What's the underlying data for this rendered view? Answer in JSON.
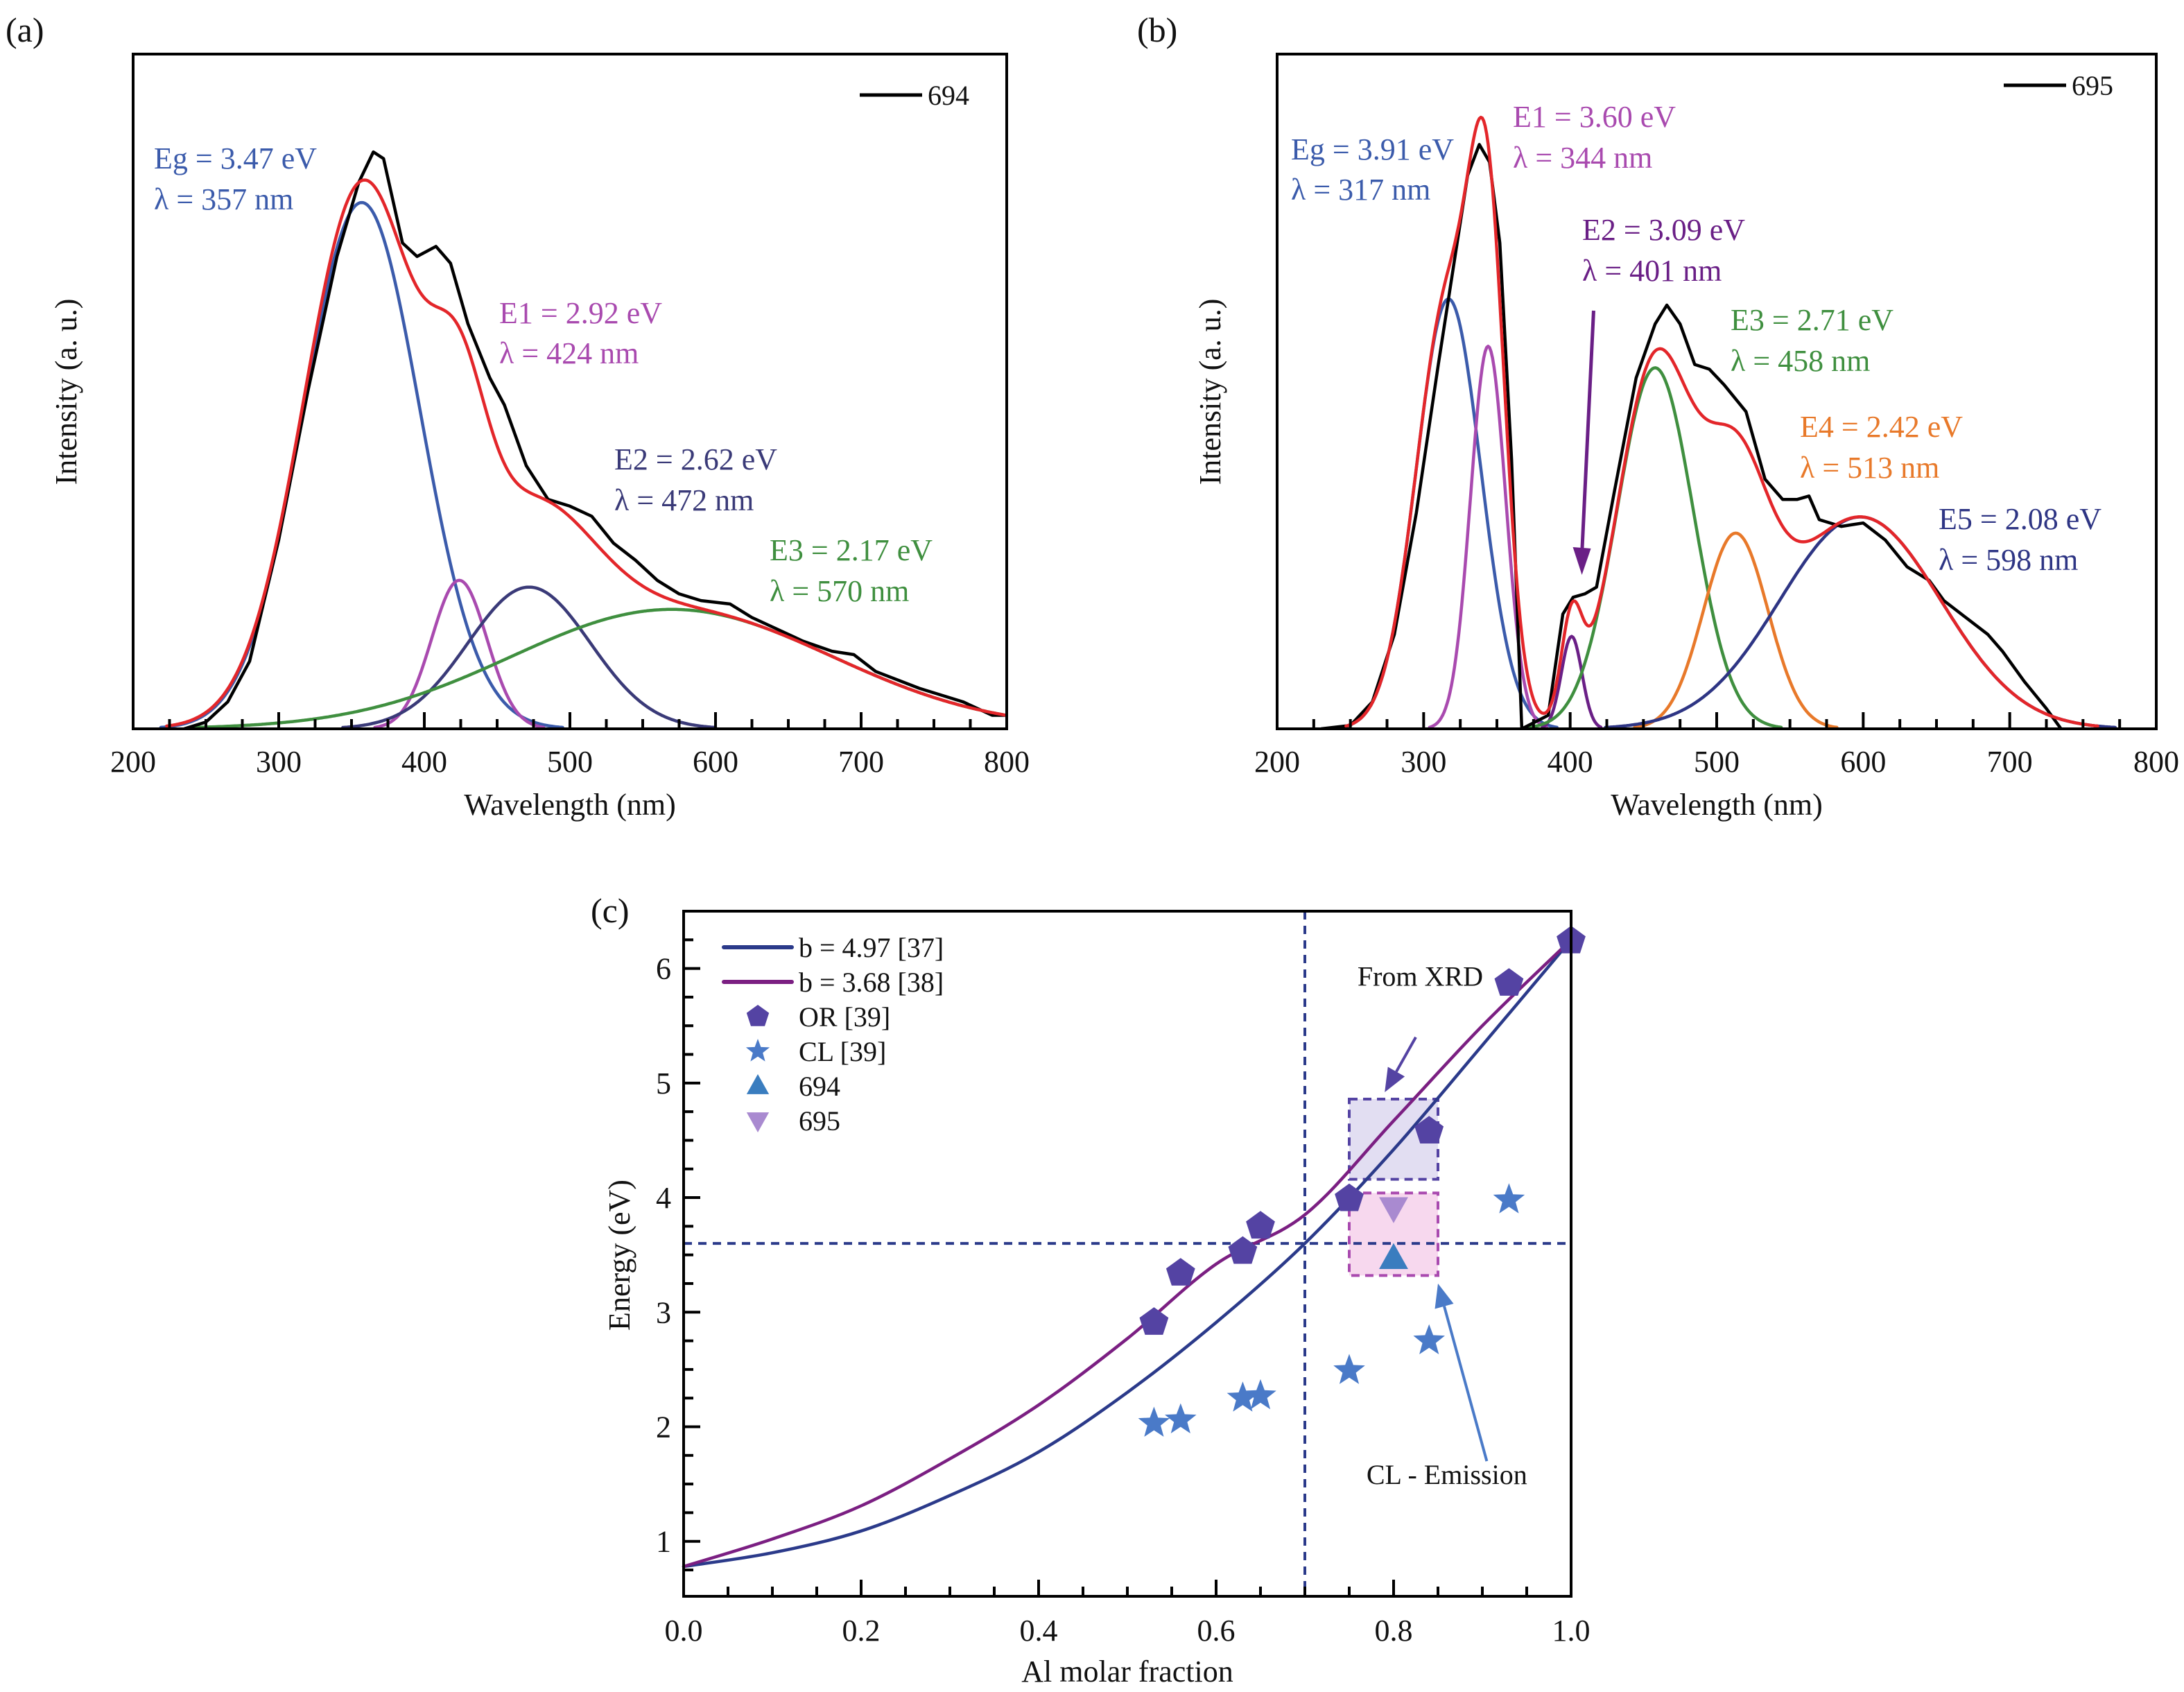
{
  "figure": {
    "panel_labels": [
      "(a)",
      "(b)",
      "(c)"
    ]
  },
  "chart_data": [
    {
      "id": "a",
      "type": "line",
      "panel_label": "(a)",
      "title": "",
      "xlabel": "Wavelength (nm)",
      "ylabel": "Intensity (a. u.)",
      "xlim": [
        200,
        800
      ],
      "ylim": [
        0,
        1
      ],
      "x_ticks": [
        200,
        300,
        400,
        500,
        600,
        700,
        800
      ],
      "x_tick_labels": [
        "200",
        "300",
        "400",
        "500",
        "600",
        "700",
        "800"
      ],
      "y_ticks": [],
      "grid": false,
      "legend": {
        "position": "top-right",
        "entries": [
          {
            "label": "694",
            "color": "#000000"
          }
        ]
      },
      "experimental": {
        "name": "694",
        "color": "#000000",
        "x": [
          235,
          250,
          265,
          280,
          300,
          320,
          340,
          355,
          365,
          372,
          385,
          395,
          408,
          418,
          430,
          445,
          455,
          470,
          485,
          500,
          515,
          530,
          545,
          560,
          575,
          590,
          610,
          625,
          640,
          660,
          680,
          695,
          710,
          740,
          770,
          790,
          800
        ],
        "y": [
          0.0,
          0.01,
          0.04,
          0.1,
          0.28,
          0.5,
          0.7,
          0.81,
          0.855,
          0.845,
          0.72,
          0.7,
          0.715,
          0.69,
          0.6,
          0.52,
          0.48,
          0.39,
          0.34,
          0.33,
          0.315,
          0.275,
          0.25,
          0.22,
          0.2,
          0.19,
          0.185,
          0.165,
          0.15,
          0.13,
          0.115,
          0.11,
          0.085,
          0.06,
          0.04,
          0.02,
          0.02
        ]
      },
      "fit": {
        "name": "Cumulative fit",
        "color": "#e3262a"
      },
      "components": [
        {
          "name": "Eg",
          "center_nm": 357,
          "amplitude": 0.78,
          "sigma_nm": 40,
          "color": "#3b5bab",
          "label_lines": [
            "Eg = 3.47 eV",
            "λ = 357 nm"
          ]
        },
        {
          "name": "E1",
          "center_nm": 424,
          "amplitude": 0.22,
          "sigma_nm": 19,
          "color": "#a94aaf",
          "label_lines": [
            "E1 = 2.92 eV",
            "λ = 424 nm"
          ]
        },
        {
          "name": "E2",
          "center_nm": 472,
          "amplitude": 0.21,
          "sigma_nm": 42,
          "color": "#3a3a78",
          "label_lines": [
            "E2 = 2.62 eV",
            "λ = 472 nm"
          ]
        },
        {
          "name": "E3",
          "center_nm": 570,
          "amplitude": 0.177,
          "sigma_nm": 110,
          "color": "#3f8f3f",
          "label_lines": [
            "E3 = 2.17 eV",
            "λ = 570 nm"
          ]
        }
      ]
    },
    {
      "id": "b",
      "type": "line",
      "panel_label": "(b)",
      "title": "",
      "xlabel": "Wavelength (nm)",
      "ylabel": "Intensity (a. u.)",
      "xlim": [
        200,
        800
      ],
      "ylim": [
        0,
        1
      ],
      "x_ticks": [
        200,
        300,
        400,
        500,
        600,
        700,
        800
      ],
      "x_tick_labels": [
        "200",
        "300",
        "400",
        "500",
        "600",
        "700",
        "800"
      ],
      "y_ticks": [],
      "grid": false,
      "legend": {
        "position": "top-right",
        "entries": [
          {
            "label": "695",
            "color": "#000000"
          }
        ]
      },
      "experimental": {
        "name": "695",
        "color": "#000000",
        "x": [
          230,
          250,
          265,
          280,
          295,
          310,
          320,
          330,
          338,
          345,
          352,
          360,
          367,
          385,
          395,
          402,
          410,
          418,
          430,
          445,
          458,
          466,
          475,
          485,
          495,
          505,
          520,
          533,
          545,
          555,
          563,
          570,
          585,
          600,
          615,
          630,
          645,
          655,
          670,
          685,
          695,
          710,
          725,
          735
        ],
        "y": [
          0.0,
          0.005,
          0.04,
          0.14,
          0.32,
          0.54,
          0.68,
          0.82,
          0.866,
          0.84,
          0.72,
          0.4,
          0.0,
          0.02,
          0.17,
          0.195,
          0.2,
          0.21,
          0.35,
          0.52,
          0.6,
          0.628,
          0.6,
          0.54,
          0.533,
          0.51,
          0.47,
          0.37,
          0.34,
          0.34,
          0.345,
          0.31,
          0.3,
          0.305,
          0.28,
          0.24,
          0.22,
          0.19,
          0.165,
          0.14,
          0.115,
          0.07,
          0.03,
          0.0
        ]
      },
      "fit": {
        "name": "Cumulative fit",
        "color": "#e3262a"
      },
      "components": [
        {
          "name": "Eg",
          "center_nm": 317,
          "amplitude": 0.637,
          "sigma_nm": 22,
          "color": "#3b5bab",
          "label_lines": [
            "Eg = 3.91 eV",
            "λ = 317 nm"
          ]
        },
        {
          "name": "E1",
          "center_nm": 344,
          "amplitude": 0.567,
          "sigma_nm": 12,
          "color": "#a94aaf",
          "label_lines": [
            "E1 = 3.60 eV",
            "λ = 344 nm"
          ]
        },
        {
          "name": "E2",
          "center_nm": 401,
          "amplitude": 0.137,
          "sigma_nm": 7,
          "color": "#6a1f86",
          "label_lines": [
            "E2 = 3.09 eV",
            "λ = 401 nm"
          ]
        },
        {
          "name": "E3",
          "center_nm": 458,
          "amplitude": 0.535,
          "sigma_nm": 26,
          "color": "#3f8f3f",
          "label_lines": [
            "E3 = 2.71 eV",
            "λ = 458 nm"
          ]
        },
        {
          "name": "E4",
          "center_nm": 513,
          "amplitude": 0.29,
          "sigma_nm": 22,
          "color": "#e8792a",
          "label_lines": [
            "E4 = 2.42 eV",
            "λ = 513 nm"
          ]
        },
        {
          "name": "E5",
          "center_nm": 598,
          "amplitude": 0.314,
          "sigma_nm": 55,
          "color": "#2e3584",
          "label_lines": [
            "E5 = 2.08 eV",
            "λ = 598 nm"
          ]
        }
      ],
      "annotations": [
        {
          "type": "arrow",
          "target": "E2",
          "from": [
            416,
            0.35
          ],
          "to": [
            408,
            0.22
          ],
          "color": "#6a1f86"
        }
      ]
    },
    {
      "id": "c",
      "type": "scatter",
      "panel_label": "(c)",
      "title": "",
      "xlabel": "Al molar fraction",
      "ylabel": "Energy (eV)",
      "xlim": [
        0.0,
        1.0
      ],
      "ylim": [
        0.52,
        6.5
      ],
      "x_ticks": [
        0.0,
        0.2,
        0.4,
        0.6,
        0.8,
        1.0
      ],
      "x_tick_labels": [
        "0.0",
        "0.2",
        "0.4",
        "0.6",
        "0.8",
        "1.0"
      ],
      "y_ticks": [
        1,
        2,
        3,
        4,
        5,
        6
      ],
      "y_tick_labels": [
        "1",
        "2",
        "3",
        "4",
        "5",
        "6"
      ],
      "grid": false,
      "legend": {
        "position": "top-left",
        "entries": [
          {
            "label": "b = 4.97 [37]",
            "marker": "line",
            "color": "#2b3a8a"
          },
          {
            "label": "b = 3.68 [38]",
            "marker": "line",
            "color": "#7b1f82"
          },
          {
            "label": "OR [39]",
            "marker": "pentagon",
            "color": "#5443a3"
          },
          {
            "label": "CL [39]",
            "marker": "star",
            "color": "#4a7ac8"
          },
          {
            "label": "694",
            "marker": "triangle-up",
            "color": "#3a7dbf"
          },
          {
            "label": "695",
            "marker": "triangle-down",
            "color": "#a98ad0"
          }
        ]
      },
      "lines": [
        {
          "name": "b = 4.97 [37]",
          "color": "#2b3a8a",
          "x": [
            0.0,
            0.1,
            0.2,
            0.3,
            0.4,
            0.5,
            0.6,
            0.7,
            0.8,
            0.9,
            1.0
          ],
          "y": [
            0.78,
            0.9,
            1.09,
            1.4,
            1.78,
            2.3,
            2.91,
            3.6,
            4.42,
            5.33,
            6.25
          ]
        },
        {
          "name": "b = 3.68 [38]",
          "color": "#7b1f82",
          "x": [
            0.0,
            0.1,
            0.2,
            0.3,
            0.4,
            0.5,
            0.6,
            0.7,
            0.8,
            0.9,
            1.0
          ],
          "y": [
            0.78,
            1.02,
            1.31,
            1.72,
            2.19,
            2.77,
            3.42,
            3.85,
            4.67,
            5.5,
            6.25
          ]
        }
      ],
      "series": [
        {
          "name": "OR [39]",
          "marker": "pentagon",
          "color": "#5443a3",
          "x": [
            0.53,
            0.56,
            0.63,
            0.65,
            0.75,
            0.84,
            0.93,
            1.0
          ],
          "y": [
            2.91,
            3.34,
            3.53,
            3.75,
            3.99,
            4.58,
            5.87,
            6.24
          ]
        },
        {
          "name": "CL [39]",
          "marker": "star",
          "color": "#4a7ac8",
          "x": [
            0.53,
            0.56,
            0.63,
            0.65,
            0.75,
            0.84,
            0.93
          ],
          "y": [
            2.03,
            2.06,
            2.25,
            2.27,
            2.49,
            2.75,
            3.98
          ]
        },
        {
          "name": "694",
          "marker": "triangle-up",
          "color": "#3a7dbf",
          "x": [
            0.8
          ],
          "y": [
            3.47
          ]
        },
        {
          "name": "695",
          "marker": "triangle-down",
          "color": "#a98ad0",
          "x": [
            0.8
          ],
          "y": [
            3.91
          ]
        }
      ],
      "reference_lines": [
        {
          "orientation": "horizontal",
          "value": 3.6,
          "style": "dashed",
          "color": "#2b3a8a"
        },
        {
          "orientation": "vertical",
          "value": 0.7,
          "style": "dashed",
          "color": "#2b3a8a"
        }
      ],
      "regions": [
        {
          "name": "From XRD",
          "x": [
            0.75,
            0.85
          ],
          "y": [
            4.16,
            4.86
          ],
          "fill": "#e2def2",
          "stroke": "#5443a3"
        },
        {
          "name": "CL - Emission",
          "x": [
            0.75,
            0.85
          ],
          "y": [
            3.32,
            4.04
          ],
          "fill": "#f7d8ee",
          "stroke": "#a94aaf"
        }
      ],
      "annotations": [
        {
          "text": "From XRD",
          "color": "#5443a3",
          "text_at": [
            0.83,
            5.85
          ],
          "arrow_from": [
            0.825,
            5.4
          ],
          "arrow_to": [
            0.79,
            4.92
          ]
        },
        {
          "text": "CL - Emission",
          "color": "#4a7ac8",
          "text_at": [
            0.86,
            1.5
          ],
          "arrow_from": [
            0.905,
            1.7
          ],
          "arrow_to": [
            0.85,
            3.25
          ]
        }
      ]
    }
  ]
}
